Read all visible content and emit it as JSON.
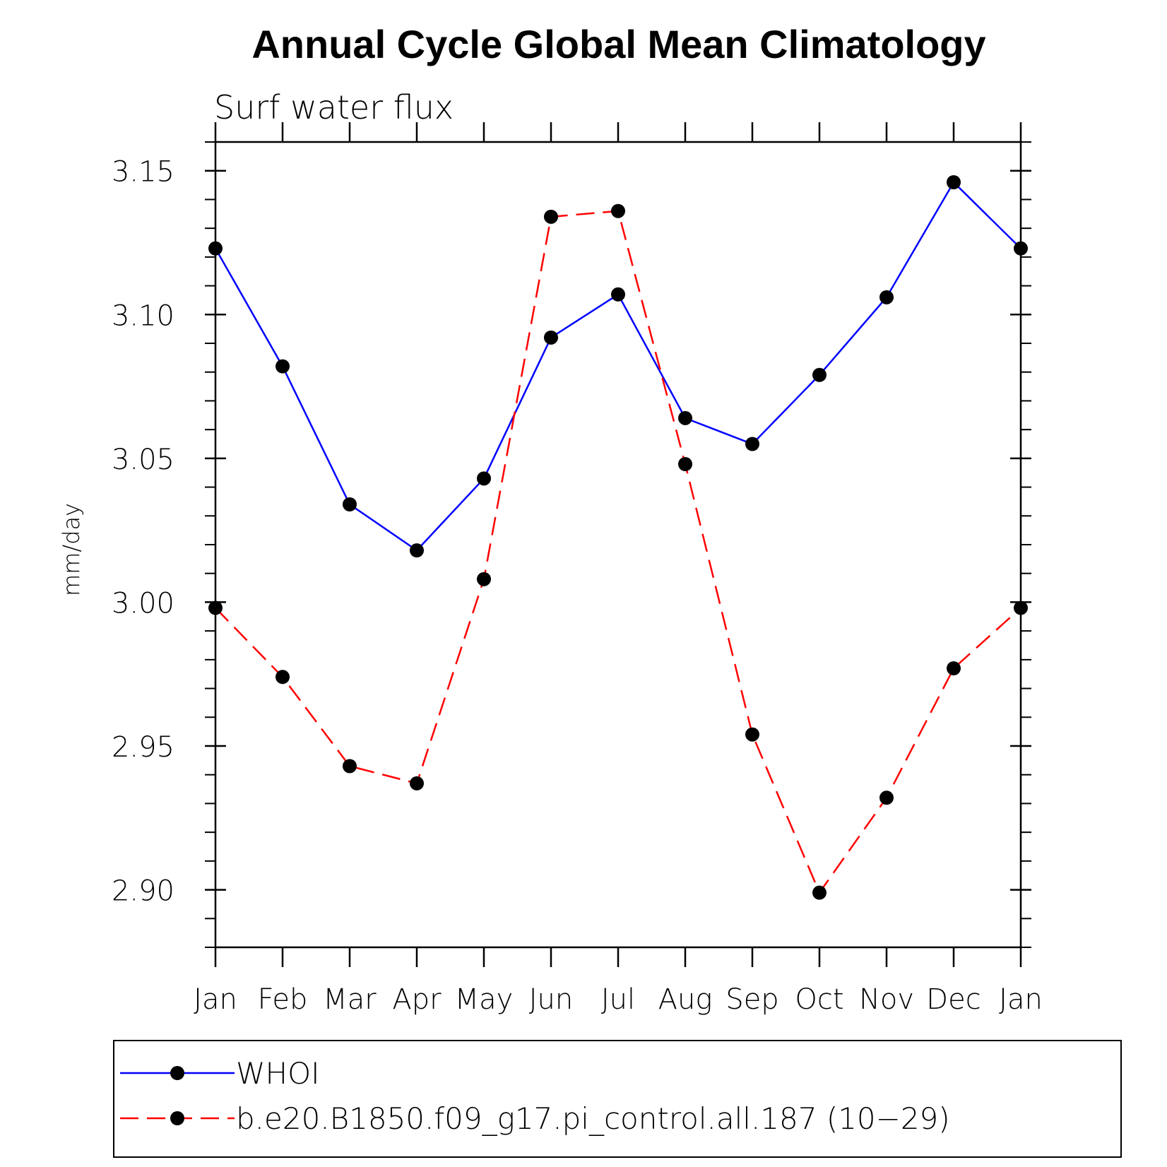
{
  "chart_data": {
    "type": "line",
    "title": "Annual Cycle Global Mean Climatology",
    "subtitle": "Surf water flux",
    "xlabel": "",
    "ylabel": "mm/day",
    "categories": [
      "Jan",
      "Feb",
      "Mar",
      "Apr",
      "May",
      "Jun",
      "Jul",
      "Aug",
      "Sep",
      "Oct",
      "Nov",
      "Dec",
      "Jan"
    ],
    "ylim": [
      2.88,
      3.16
    ],
    "yticks": [
      "3.15",
      "3.10",
      "3.05",
      "3.00",
      "2.95",
      "2.90"
    ],
    "series": [
      {
        "name": "WHOI",
        "color": "#0000ff",
        "dash": "solid",
        "values": [
          3.123,
          3.082,
          3.034,
          3.018,
          3.043,
          3.092,
          3.107,
          3.064,
          3.055,
          3.079,
          3.106,
          3.146,
          3.123
        ]
      },
      {
        "name": "b.e20.B1850.f09_g17.pi_control.all.187 (10−29)",
        "color": "#ff0000",
        "dash": "dashed",
        "values": [
          2.998,
          2.974,
          2.943,
          2.937,
          3.008,
          3.134,
          3.136,
          3.048,
          2.954,
          2.899,
          2.932,
          2.977,
          2.998
        ]
      }
    ],
    "grid": false,
    "legend_position": "bottom"
  }
}
